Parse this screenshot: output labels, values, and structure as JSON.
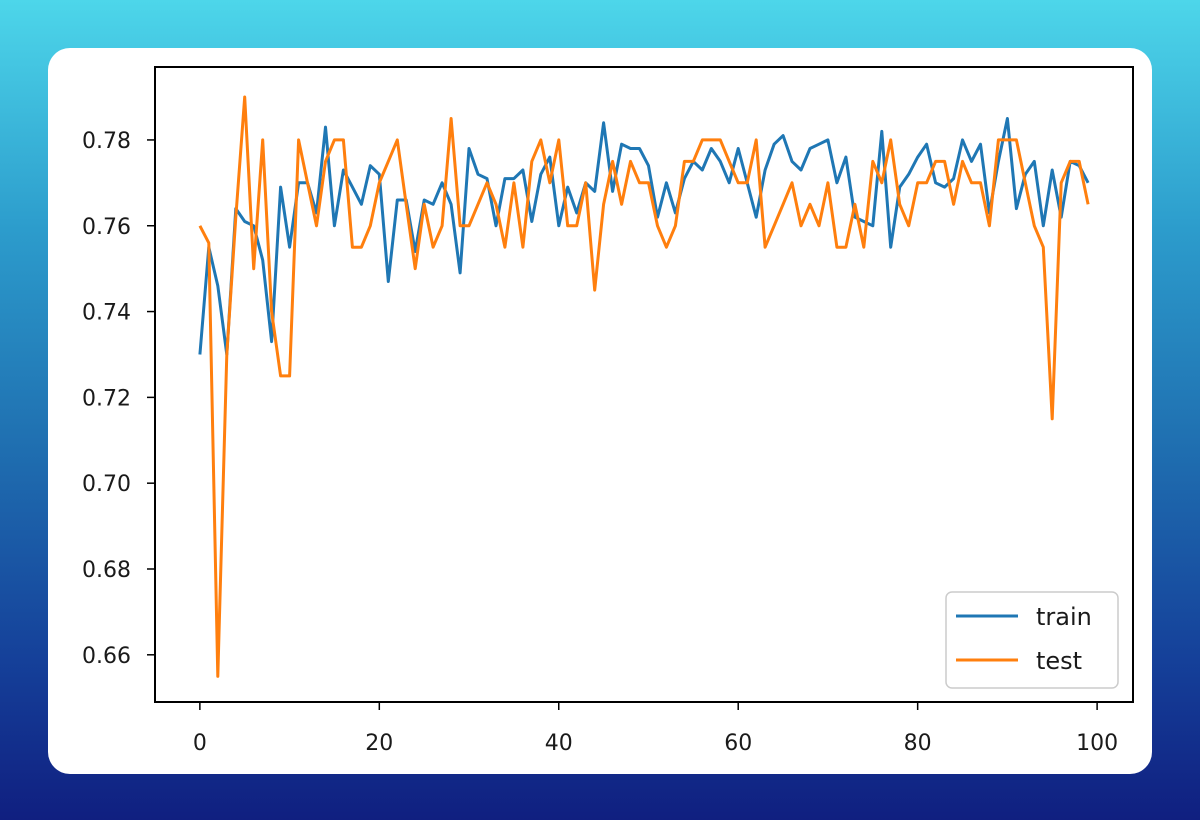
{
  "chart_data": {
    "type": "line",
    "title": "",
    "xlabel": "",
    "ylabel": "",
    "xlim": [
      -5,
      104
    ],
    "ylim": [
      0.649,
      0.797
    ],
    "xticks": [
      0,
      20,
      40,
      60,
      80,
      100
    ],
    "yticks": [
      0.66,
      0.68,
      0.7,
      0.72,
      0.74,
      0.76,
      0.78
    ],
    "x_tick_labels": [
      "0",
      "20",
      "40",
      "60",
      "80",
      "100"
    ],
    "y_tick_labels": [
      "0.66",
      "0.68",
      "0.70",
      "0.72",
      "0.74",
      "0.76",
      "0.78"
    ],
    "grid": false,
    "legend_position": "lower-right",
    "x": [
      0,
      1,
      2,
      3,
      4,
      5,
      6,
      7,
      8,
      9,
      10,
      11,
      12,
      13,
      14,
      15,
      16,
      17,
      18,
      19,
      20,
      21,
      22,
      23,
      24,
      25,
      26,
      27,
      28,
      29,
      30,
      31,
      32,
      33,
      34,
      35,
      36,
      37,
      38,
      39,
      40,
      41,
      42,
      43,
      44,
      45,
      46,
      47,
      48,
      49,
      50,
      51,
      52,
      53,
      54,
      55,
      56,
      57,
      58,
      59,
      60,
      61,
      62,
      63,
      64,
      65,
      66,
      67,
      68,
      69,
      70,
      71,
      72,
      73,
      74,
      75,
      76,
      77,
      78,
      79,
      80,
      81,
      82,
      83,
      84,
      85,
      86,
      87,
      88,
      89,
      90,
      91,
      92,
      93,
      94,
      95,
      96,
      97,
      98,
      99
    ],
    "series": [
      {
        "name": "train",
        "color": "#1f77b4",
        "values": [
          0.73,
          0.755,
          0.746,
          0.73,
          0.764,
          0.761,
          0.76,
          0.752,
          0.733,
          0.769,
          0.755,
          0.77,
          0.77,
          0.763,
          0.783,
          0.76,
          0.773,
          0.769,
          0.765,
          0.774,
          0.772,
          0.747,
          0.766,
          0.766,
          0.754,
          0.766,
          0.765,
          0.77,
          0.765,
          0.749,
          0.778,
          0.772,
          0.771,
          0.76,
          0.771,
          0.771,
          0.773,
          0.761,
          0.772,
          0.776,
          0.76,
          0.769,
          0.763,
          0.77,
          0.768,
          0.784,
          0.768,
          0.779,
          0.778,
          0.778,
          0.774,
          0.762,
          0.77,
          0.763,
          0.771,
          0.775,
          0.773,
          0.778,
          0.775,
          0.77,
          0.778,
          0.77,
          0.762,
          0.773,
          0.779,
          0.781,
          0.775,
          0.773,
          0.778,
          0.779,
          0.78,
          0.77,
          0.776,
          0.762,
          0.761,
          0.76,
          0.782,
          0.755,
          0.769,
          0.772,
          0.776,
          0.779,
          0.77,
          0.769,
          0.771,
          0.78,
          0.775,
          0.779,
          0.763,
          0.775,
          0.785,
          0.764,
          0.772,
          0.775,
          0.76,
          0.773,
          0.762,
          0.775,
          0.774,
          0.77
        ]
      },
      {
        "name": "test",
        "color": "#ff7f0e",
        "values": [
          0.76,
          0.756,
          0.655,
          0.73,
          0.762,
          0.79,
          0.75,
          0.78,
          0.74,
          0.725,
          0.725,
          0.78,
          0.77,
          0.76,
          0.775,
          0.78,
          0.78,
          0.755,
          0.755,
          0.76,
          0.77,
          0.775,
          0.78,
          0.765,
          0.75,
          0.765,
          0.755,
          0.76,
          0.785,
          0.76,
          0.76,
          0.765,
          0.77,
          0.765,
          0.755,
          0.77,
          0.755,
          0.775,
          0.78,
          0.77,
          0.78,
          0.76,
          0.76,
          0.77,
          0.745,
          0.765,
          0.775,
          0.765,
          0.775,
          0.77,
          0.77,
          0.76,
          0.755,
          0.76,
          0.775,
          0.775,
          0.78,
          0.78,
          0.78,
          0.775,
          0.77,
          0.77,
          0.78,
          0.755,
          0.76,
          0.765,
          0.77,
          0.76,
          0.765,
          0.76,
          0.77,
          0.755,
          0.755,
          0.765,
          0.755,
          0.775,
          0.77,
          0.78,
          0.765,
          0.76,
          0.77,
          0.77,
          0.775,
          0.775,
          0.765,
          0.775,
          0.77,
          0.77,
          0.76,
          0.78,
          0.78,
          0.78,
          0.77,
          0.76,
          0.755,
          0.715,
          0.77,
          0.775,
          0.775,
          0.765
        ]
      }
    ]
  }
}
